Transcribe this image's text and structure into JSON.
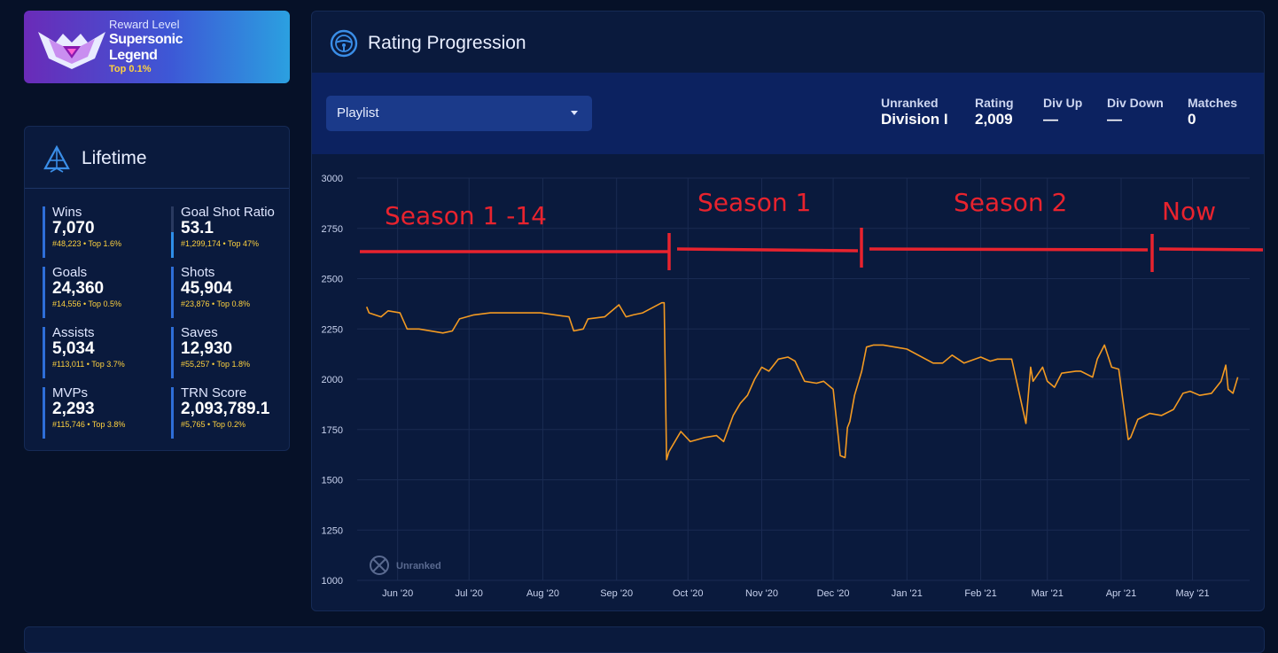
{
  "reward": {
    "label": "Reward Level",
    "name": "Supersonic Legend",
    "top": "Top 0.1%"
  },
  "lifetime": {
    "title": "Lifetime",
    "stats": [
      {
        "label": "Wins",
        "value": "7,070",
        "rank": "#48,223 • Top 1.6%"
      },
      {
        "label": "Goal Shot Ratio",
        "value": "53.1",
        "rank": "#1,299,174 • Top 47%"
      },
      {
        "label": "Goals",
        "value": "24,360",
        "rank": "#14,556 • Top 0.5%"
      },
      {
        "label": "Shots",
        "value": "45,904",
        "rank": "#23,876 • Top 0.8%"
      },
      {
        "label": "Assists",
        "value": "5,034",
        "rank": "#113,011 • Top 3.7%"
      },
      {
        "label": "Saves",
        "value": "12,930",
        "rank": "#55,257 • Top 1.8%"
      },
      {
        "label": "MVPs",
        "value": "2,293",
        "rank": "#115,746 • Top 3.8%"
      },
      {
        "label": "TRN Score",
        "value": "2,093,789.1",
        "rank": "#5,765 • Top 0.2%"
      }
    ]
  },
  "rating": {
    "title": "Rating Progression",
    "playlist_label": "Playlist",
    "header_stats": [
      {
        "label": "Unranked",
        "value": "Division I"
      },
      {
        "label": "Rating",
        "value": "2,009"
      },
      {
        "label": "Div Up",
        "value": "—"
      },
      {
        "label": "Div Down",
        "value": "—"
      },
      {
        "label": "Matches",
        "value": "0"
      }
    ]
  },
  "colors": {
    "line": "#f39a22",
    "annotation": "#e8232e",
    "accent": "#2e6ed8",
    "rank_text": "#ffd23f"
  },
  "chart_data": {
    "type": "line",
    "y_ticks": [
      1000,
      1250,
      1500,
      1750,
      2000,
      2250,
      2500,
      2750,
      3000
    ],
    "ylim": [
      1000,
      3000
    ],
    "x_ticks": [
      "Jun '20",
      "Jul '20",
      "Aug '20",
      "Sep '20",
      "Oct '20",
      "Nov '20",
      "Dec '20",
      "Jan '21",
      "Feb '21",
      "Mar '21",
      "Apr '21",
      "May '21"
    ],
    "watermark": "Unranked",
    "grid": true,
    "series": [
      {
        "color": "#f39a22",
        "x": [
          "2020-05-19",
          "2020-05-20",
          "2020-05-25",
          "2020-05-28",
          "2020-06-02",
          "2020-06-05",
          "2020-06-10",
          "2020-06-20",
          "2020-06-24",
          "2020-06-27",
          "2020-07-03",
          "2020-07-10",
          "2020-07-20",
          "2020-07-31",
          "2020-08-12",
          "2020-08-14",
          "2020-08-18",
          "2020-08-20",
          "2020-08-27",
          "2020-09-02",
          "2020-09-05",
          "2020-09-08",
          "2020-09-12",
          "2020-09-20",
          "2020-09-21",
          "2020-09-22",
          "2020-09-23",
          "2020-09-28",
          "2020-10-02",
          "2020-10-05",
          "2020-10-08",
          "2020-10-13",
          "2020-10-16",
          "2020-10-20",
          "2020-10-23",
          "2020-10-26",
          "2020-10-29",
          "2020-11-01",
          "2020-11-04",
          "2020-11-08",
          "2020-11-12",
          "2020-11-15",
          "2020-11-19",
          "2020-11-24",
          "2020-11-27",
          "2020-12-01",
          "2020-12-04",
          "2020-12-06",
          "2020-12-07",
          "2020-12-08",
          "2020-12-10",
          "2020-12-13",
          "2020-12-15",
          "2020-12-18",
          "2020-12-22",
          "2021-01-01",
          "2021-01-12",
          "2021-01-16",
          "2021-01-20",
          "2021-01-25",
          "2021-02-01",
          "2021-02-05",
          "2021-02-08",
          "2021-02-14",
          "2021-02-20",
          "2021-02-22",
          "2021-02-23",
          "2021-02-27",
          "2021-03-01",
          "2021-03-04",
          "2021-03-07",
          "2021-03-13",
          "2021-03-15",
          "2021-03-20",
          "2021-03-22",
          "2021-03-25",
          "2021-03-28",
          "2021-03-31",
          "2021-04-04",
          "2021-04-05",
          "2021-04-08",
          "2021-04-13",
          "2021-04-18",
          "2021-04-23",
          "2021-04-27",
          "2021-04-30",
          "2021-05-04",
          "2021-05-09",
          "2021-05-13",
          "2021-05-15",
          "2021-05-16",
          "2021-05-18",
          "2021-05-20"
        ],
        "y": [
          2360,
          2330,
          2310,
          2340,
          2330,
          2250,
          2250,
          2230,
          2240,
          2300,
          2320,
          2330,
          2330,
          2330,
          2310,
          2240,
          2250,
          2300,
          2310,
          2370,
          2310,
          2320,
          2330,
          2380,
          2380,
          1600,
          1640,
          1740,
          1690,
          1700,
          1710,
          1720,
          1690,
          1820,
          1880,
          1920,
          2000,
          2060,
          2040,
          2100,
          2110,
          2090,
          1990,
          1980,
          1990,
          1950,
          1620,
          1610,
          1760,
          1790,
          1920,
          2040,
          2160,
          2170,
          2170,
          2150,
          2080,
          2080,
          2120,
          2080,
          2110,
          2090,
          2100,
          2100,
          1780,
          2060,
          1990,
          2060,
          1990,
          1960,
          2030,
          2040,
          2040,
          2010,
          2100,
          2170,
          2060,
          2050,
          1700,
          1710,
          1800,
          1830,
          1820,
          1850,
          1930,
          1940,
          1920,
          1930,
          1990,
          2070,
          1950,
          1930,
          2010
        ]
      }
    ],
    "annotations": [
      {
        "text": "Season 1 -14"
      },
      {
        "text": "Season 1"
      },
      {
        "text": "Season 2"
      },
      {
        "text": "Now"
      }
    ]
  }
}
